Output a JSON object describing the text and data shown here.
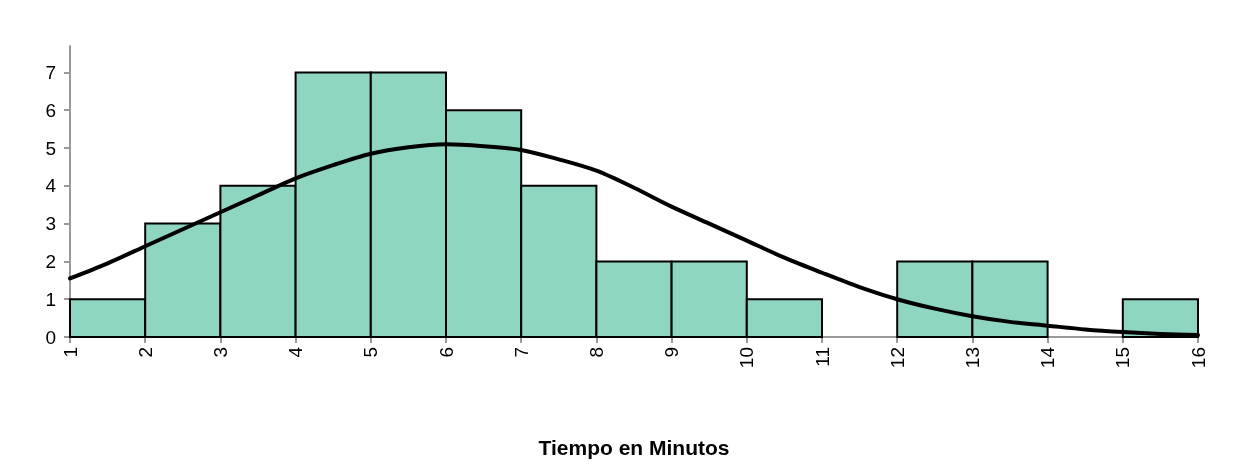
{
  "chart_data": {
    "type": "histogram",
    "xlabel": "Tiempo en Minutos",
    "bins": [
      1,
      2,
      3,
      4,
      5,
      6,
      7,
      8,
      9,
      10,
      11,
      12,
      13,
      14,
      15,
      16
    ],
    "values": [
      1,
      3,
      4,
      7,
      7,
      6,
      4,
      2,
      2,
      1,
      0,
      2,
      2,
      0,
      1
    ],
    "color": "#8fd6c2",
    "series": [
      {
        "type": "line",
        "color": "#000000",
        "x": [
          1,
          1.5,
          2,
          2.5,
          3,
          3.5,
          4,
          4.5,
          5,
          5.5,
          6,
          6.5,
          7,
          7.5,
          8,
          8.5,
          9,
          9.5,
          10,
          10.5,
          11,
          11.5,
          12,
          12.5,
          13,
          13.5,
          14,
          14.5,
          15,
          15.5,
          16
        ],
        "values": [
          1.55,
          1.95,
          2.4,
          2.85,
          3.3,
          3.75,
          4.2,
          4.55,
          4.85,
          5.02,
          5.1,
          5.05,
          4.95,
          4.7,
          4.4,
          3.95,
          3.45,
          3.0,
          2.55,
          2.1,
          1.7,
          1.32,
          1.0,
          0.75,
          0.55,
          0.4,
          0.3,
          0.2,
          0.13,
          0.08,
          0.05
        ]
      }
    ],
    "xlim": [
      1,
      16
    ],
    "xticks": [
      1,
      2,
      3,
      4,
      5,
      6,
      7,
      8,
      9,
      10,
      11,
      12,
      13,
      14,
      15,
      16
    ],
    "ylim": [
      0,
      7.7
    ],
    "yticks": [
      0,
      1,
      2,
      3,
      4,
      5,
      6,
      7
    ],
    "grid": false,
    "marker": "none",
    "line_style": "solid"
  }
}
